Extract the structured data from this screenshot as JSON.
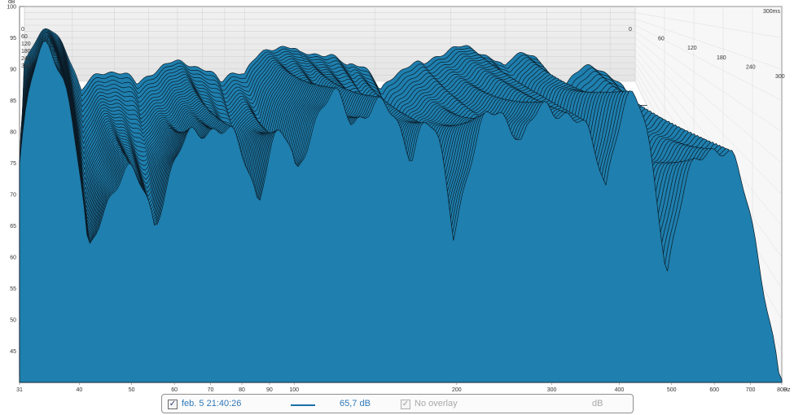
{
  "chart_data": {
    "type": "waterfall",
    "x_scale": "log",
    "x_unit": "Hz",
    "xlim": [
      31,
      800
    ],
    "x_ticks": [
      "31",
      "40",
      "50",
      "60",
      "70",
      "80",
      "90",
      "100",
      "200",
      "300",
      "400",
      "500",
      "600",
      "700",
      "800"
    ],
    "y_unit": "dB",
    "ylim": [
      40,
      100
    ],
    "y_ticks": [
      "100",
      "95",
      "90",
      "85",
      "80",
      "75",
      "70",
      "65",
      "60",
      "55",
      "50",
      "45"
    ],
    "z_unit": "ms",
    "zlim": [
      0,
      300
    ],
    "z_ticks_left": [
      "0",
      "60",
      "120",
      "180",
      "240",
      "300"
    ],
    "z_ticks_right": [
      "0",
      "60",
      "120",
      "180",
      "240",
      "300"
    ],
    "z_max_label": "300ms",
    "slice_count": 40,
    "fill_color": "#1f7fae",
    "line_color": "#0b1b26",
    "grid": true,
    "series": [
      {
        "name": "feb. 5 21:40:26",
        "peaks_hz": [
          35,
          49,
          70,
          94,
          118,
          140,
          175,
          240,
          305,
          420,
          600
        ],
        "peaks_db": [
          94,
          73,
          81,
          79,
          85,
          84,
          81,
          83,
          84,
          85,
          78
        ],
        "floor_db": 40
      }
    ]
  },
  "legend": {
    "series_checked": "✓",
    "series_label": "feb. 5 21:40:26",
    "series_value": "65,7 dB",
    "overlay_checked": "✓",
    "overlay_label": "No overlay",
    "overlay_unit": "dB"
  }
}
